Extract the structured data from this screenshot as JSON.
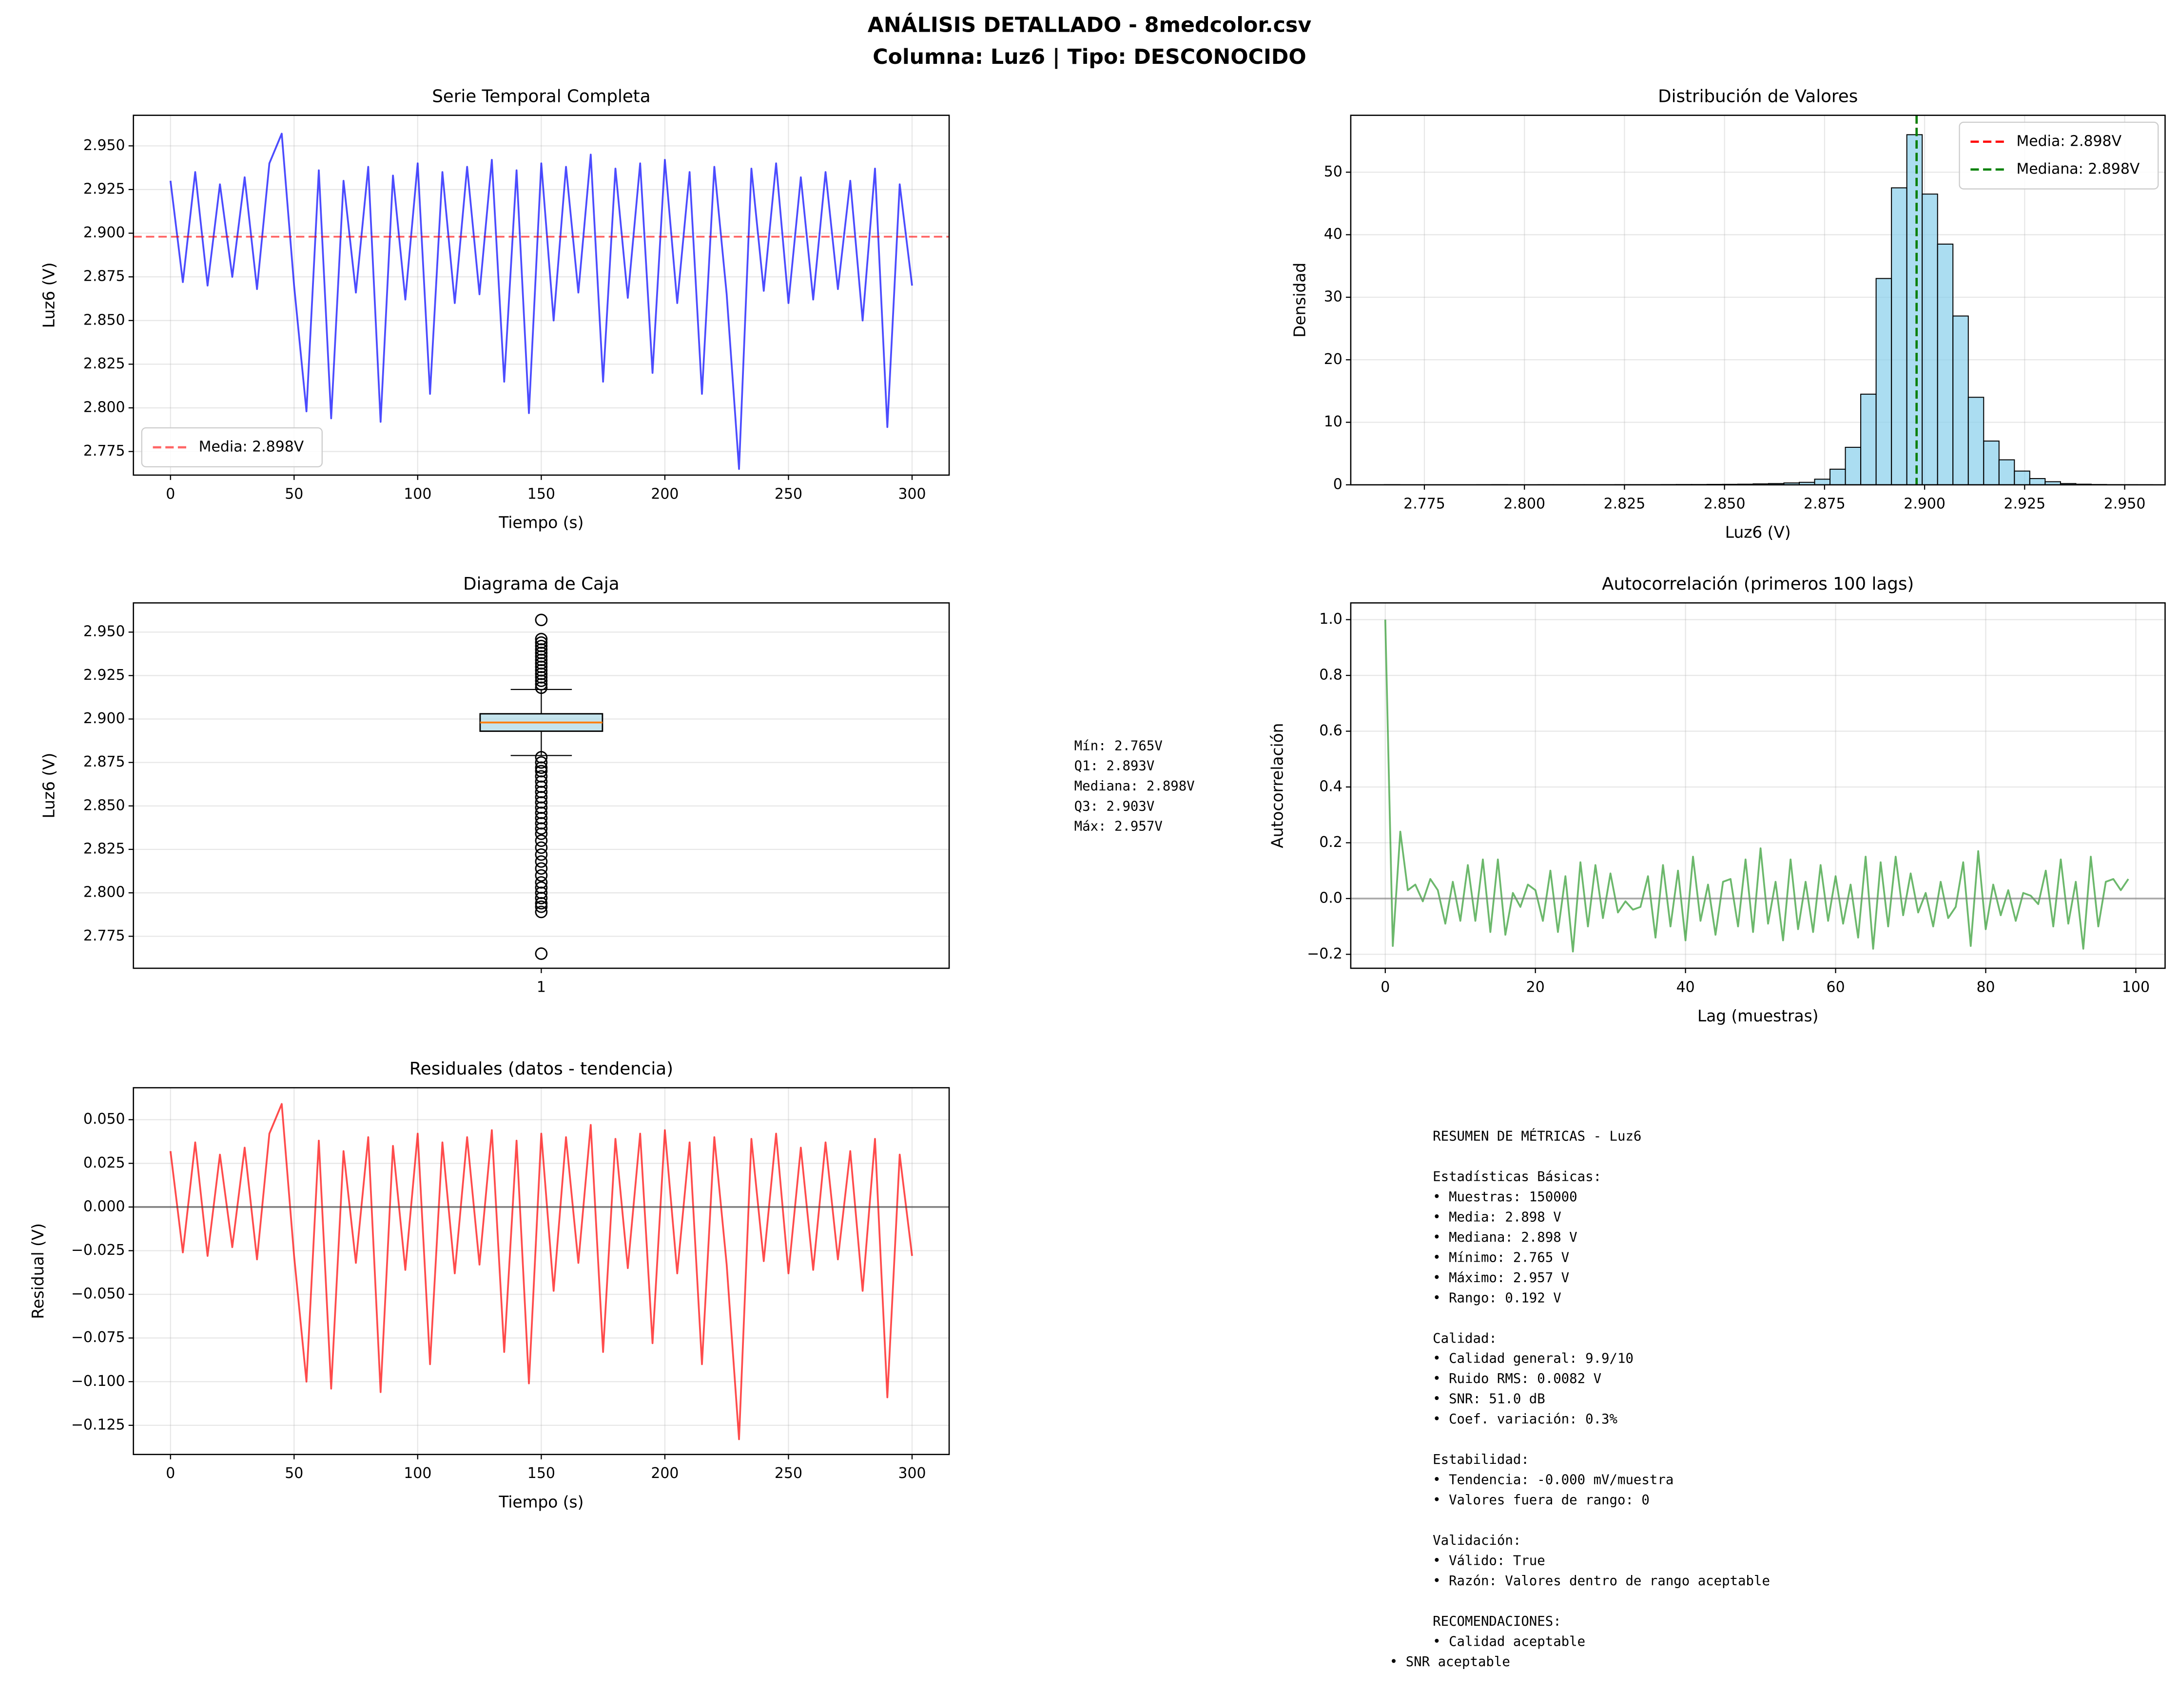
{
  "title": "ANÁLISIS DETALLADO - 8medcolor.csv",
  "subtitle": "Columna: Luz6 | Tipo: DESCONOCIDO",
  "chart_data": [
    {
      "type": "line",
      "title": "Serie Temporal Completa",
      "xlabel": "Tiempo (s)",
      "ylabel": "Luz6 (V)",
      "x": [
        0,
        5,
        10,
        15,
        20,
        25,
        30,
        35,
        40,
        45,
        50,
        55,
        60,
        65,
        70,
        75,
        80,
        85,
        90,
        95,
        100,
        105,
        110,
        115,
        120,
        125,
        130,
        135,
        140,
        145,
        150,
        155,
        160,
        165,
        170,
        175,
        180,
        185,
        190,
        195,
        200,
        205,
        210,
        215,
        220,
        225,
        230,
        235,
        240,
        245,
        250,
        255,
        260,
        265,
        270,
        275,
        280,
        285,
        290,
        295,
        300
      ],
      "series": [
        {
          "color": "#0000ff",
          "values": [
            2.93,
            2.872,
            2.935,
            2.87,
            2.928,
            2.875,
            2.932,
            2.868,
            2.94,
            2.957,
            2.87,
            2.798,
            2.936,
            2.794,
            2.93,
            2.866,
            2.938,
            2.792,
            2.933,
            2.862,
            2.94,
            2.808,
            2.935,
            2.86,
            2.938,
            2.865,
            2.942,
            2.815,
            2.936,
            2.797,
            2.94,
            2.85,
            2.938,
            2.866,
            2.945,
            2.815,
            2.937,
            2.863,
            2.94,
            2.82,
            2.942,
            2.86,
            2.935,
            2.808,
            2.938,
            2.865,
            2.765,
            2.937,
            2.867,
            2.94,
            2.86,
            2.932,
            2.862,
            2.935,
            2.868,
            2.93,
            2.85,
            2.937,
            2.789,
            2.928,
            2.87
          ]
        }
      ],
      "hlines": [
        {
          "value": 2.898,
          "label": "Media: 2.898V",
          "color": "#ff0000",
          "style": "dashed"
        }
      ],
      "legend": "lower left",
      "xlim": [
        -15,
        315
      ],
      "xticks": [
        0,
        50,
        100,
        150,
        200,
        250,
        300
      ],
      "ylim": [
        2.7615,
        2.9675
      ],
      "yticks": [
        2.775,
        {
          "value": 2.8,
          "label": "2.800"
        },
        2.825,
        {
          "value": 2.85,
          "label": "2.850"
        },
        2.875,
        {
          "value": 2.9,
          "label": "2.900"
        },
        2.925,
        {
          "value": 2.95,
          "label": "2.950"
        }
      ],
      "grid": true
    },
    {
      "type": "histogram",
      "title": "Distribución de Valores",
      "xlabel": "Luz6 (V)",
      "ylabel": "Densidad",
      "bins": [
        2.765,
        2.76884,
        2.77268,
        2.77652,
        2.78036,
        2.7842,
        2.78804,
        2.79188,
        2.79572,
        2.79956,
        2.8034,
        2.80724,
        2.81108,
        2.81492,
        2.81876,
        2.8226,
        2.82644,
        2.83028,
        2.83412,
        2.83796,
        2.8418,
        2.84564,
        2.84948,
        2.85332,
        2.85716,
        2.861,
        2.86484,
        2.86868,
        2.87252,
        2.87636,
        2.8802,
        2.88404,
        2.88788,
        2.89172,
        2.89556,
        2.8994,
        2.90324,
        2.90708,
        2.91092,
        2.91476,
        2.9186,
        2.92244,
        2.92628,
        2.93012,
        2.93396,
        2.9378,
        2.94164,
        2.94548,
        2.94932,
        2.95316,
        2.957
      ],
      "values": [
        0.03,
        0,
        0,
        0,
        0,
        0,
        0.01,
        0.03,
        0.01,
        0,
        0.01,
        0.01,
        0.01,
        0.01,
        0.01,
        0.03,
        0.03,
        0.03,
        0.04,
        0.05,
        0.05,
        0.07,
        0.08,
        0.1,
        0.15,
        0.2,
        0.3,
        0.4,
        0.9,
        2.5,
        6,
        14.5,
        33,
        47.5,
        56,
        46.5,
        38.5,
        27,
        14,
        7,
        4,
        2.2,
        1,
        0.5,
        0.2,
        0.1,
        0.05,
        0.03,
        0.02,
        0.01
      ],
      "color": "#87ceeb",
      "vlines": [
        {
          "value": 2.898,
          "label": "Media: 2.898V",
          "color": "#ff0000",
          "style": "dashed"
        },
        {
          "value": 2.898,
          "label": "Mediana: 2.898V",
          "color": "#008000",
          "style": "dashed"
        }
      ],
      "legend": "upper right",
      "xlim": [
        2.7566,
        2.9601
      ],
      "xticks": [
        2.775,
        {
          "value": 2.8,
          "label": "2.800"
        },
        2.825,
        {
          "value": 2.85,
          "label": "2.850"
        },
        2.875,
        {
          "value": 2.9,
          "label": "2.900"
        },
        2.925,
        {
          "value": 2.95,
          "label": "2.950"
        }
      ],
      "ylim": [
        0,
        59.1
      ],
      "yticks": [
        0,
        10,
        20,
        30,
        40,
        50
      ],
      "grid": true
    },
    {
      "type": "box",
      "title": "Diagrama de Caja",
      "ylabel": "Luz6 (V)",
      "categories": [
        "1"
      ],
      "box": {
        "q1": 2.893,
        "median": 2.898,
        "q3": 2.903,
        "whisker_low": 2.879,
        "whisker_high": 2.917,
        "outliers": [
          2.918,
          2.92,
          2.922,
          2.924,
          2.926,
          2.928,
          2.93,
          2.932,
          2.934,
          2.936,
          2.938,
          2.94,
          2.942,
          2.944,
          2.946,
          2.957,
          2.878,
          2.875,
          2.872,
          2.87,
          2.867,
          2.864,
          2.861,
          2.858,
          2.855,
          2.852,
          2.849,
          2.846,
          2.843,
          2.84,
          2.837,
          2.834,
          2.83,
          2.826,
          2.822,
          2.818,
          2.814,
          2.81,
          2.806,
          2.803,
          2.8,
          2.797,
          2.794,
          2.792,
          2.789,
          2.765
        ]
      },
      "color": "#add8e6",
      "median_color": "#ff7f0e",
      "stats_text": [
        "Mín: 2.765V",
        "Q1: 2.893V",
        "Mediana: 2.898V",
        "Q3: 2.903V",
        "Máx: 2.957V"
      ],
      "ylim": [
        2.7566,
        2.9668
      ],
      "yticks": [
        2.775,
        {
          "value": 2.8,
          "label": "2.800"
        },
        2.825,
        {
          "value": 2.85,
          "label": "2.850"
        },
        2.875,
        {
          "value": 2.9,
          "label": "2.900"
        },
        2.925,
        {
          "value": 2.95,
          "label": "2.950"
        }
      ],
      "grid": true
    },
    {
      "type": "line",
      "title": "Autocorrelación (primeros 100 lags)",
      "xlabel": "Lag (muestras)",
      "ylabel": "Autocorrelación",
      "x": [
        0,
        1,
        2,
        3,
        4,
        5,
        6,
        7,
        8,
        9,
        10,
        11,
        12,
        13,
        14,
        15,
        16,
        17,
        18,
        19,
        20,
        21,
        22,
        23,
        24,
        25,
        26,
        27,
        28,
        29,
        30,
        31,
        32,
        33,
        34,
        35,
        36,
        37,
        38,
        39,
        40,
        41,
        42,
        43,
        44,
        45,
        46,
        47,
        48,
        49,
        50,
        51,
        52,
        53,
        54,
        55,
        56,
        57,
        58,
        59,
        60,
        61,
        62,
        63,
        64,
        65,
        66,
        67,
        68,
        69,
        70,
        71,
        72,
        73,
        74,
        75,
        76,
        77,
        78,
        79,
        80,
        81,
        82,
        83,
        84,
        85,
        86,
        87,
        88,
        89,
        90,
        91,
        92,
        93,
        94,
        95,
        96,
        97,
        98,
        99
      ],
      "series": [
        {
          "color": "#2e9a2e",
          "values": [
            1.0,
            -0.17,
            0.24,
            0.03,
            0.05,
            -0.01,
            0.07,
            0.03,
            -0.09,
            0.06,
            -0.08,
            0.12,
            -0.08,
            0.14,
            -0.12,
            0.14,
            -0.13,
            0.02,
            -0.03,
            0.05,
            0.03,
            -0.08,
            0.1,
            -0.12,
            0.08,
            -0.19,
            0.13,
            -0.1,
            0.12,
            -0.07,
            0.09,
            -0.05,
            -0.01,
            -0.04,
            -0.03,
            0.08,
            -0.14,
            0.12,
            -0.1,
            0.1,
            -0.15,
            0.15,
            -0.08,
            0.05,
            -0.13,
            0.06,
            0.07,
            -0.1,
            0.14,
            -0.12,
            0.18,
            -0.09,
            0.06,
            -0.15,
            0.14,
            -0.11,
            0.06,
            -0.12,
            0.12,
            -0.08,
            0.08,
            -0.09,
            0.05,
            -0.14,
            0.15,
            -0.18,
            0.13,
            -0.1,
            0.15,
            -0.06,
            0.09,
            -0.05,
            0.02,
            -0.1,
            0.06,
            -0.07,
            -0.03,
            0.13,
            -0.17,
            0.17,
            -0.11,
            0.05,
            -0.06,
            0.03,
            -0.08,
            0.02,
            0.01,
            -0.02,
            0.1,
            -0.1,
            0.14,
            -0.09,
            0.06,
            -0.18,
            0.15,
            -0.1,
            0.06,
            0.07,
            0.03,
            0.07
          ]
        }
      ],
      "hlines": [
        {
          "value": 0,
          "color": "#808080",
          "style": "solid"
        }
      ],
      "xlim": [
        -4.6,
        103.9
      ],
      "xticks": [
        0,
        20,
        40,
        60,
        80,
        100
      ],
      "ylim": [
        -0.25,
        1.06
      ],
      "yticks": [
        {
          "value": -0.2,
          "label": "−0.2"
        },
        {
          "value": 0,
          "label": "0.0"
        },
        0.2,
        0.4,
        0.6,
        0.8,
        {
          "value": 1,
          "label": "1.0"
        }
      ],
      "grid": true
    },
    {
      "type": "line",
      "title": "Residuales (datos - tendencia)",
      "xlabel": "Tiempo (s)",
      "ylabel": "Residual (V)",
      "x": [
        0,
        5,
        10,
        15,
        20,
        25,
        30,
        35,
        40,
        45,
        50,
        55,
        60,
        65,
        70,
        75,
        80,
        85,
        90,
        95,
        100,
        105,
        110,
        115,
        120,
        125,
        130,
        135,
        140,
        145,
        150,
        155,
        160,
        165,
        170,
        175,
        180,
        185,
        190,
        195,
        200,
        205,
        210,
        215,
        220,
        225,
        230,
        235,
        240,
        245,
        250,
        255,
        260,
        265,
        270,
        275,
        280,
        285,
        290,
        295,
        300
      ],
      "series": [
        {
          "color": "#ff0000",
          "values": [
            0.032,
            -0.026,
            0.037,
            -0.028,
            0.03,
            -0.023,
            0.034,
            -0.03,
            0.042,
            0.059,
            -0.028,
            -0.1,
            0.038,
            -0.104,
            0.032,
            -0.032,
            0.04,
            -0.106,
            0.035,
            -0.036,
            0.042,
            -0.09,
            0.037,
            -0.038,
            0.04,
            -0.033,
            0.044,
            -0.083,
            0.038,
            -0.101,
            0.042,
            -0.048,
            0.04,
            -0.032,
            0.047,
            -0.083,
            0.039,
            -0.035,
            0.042,
            -0.078,
            0.044,
            -0.038,
            0.037,
            -0.09,
            0.04,
            -0.033,
            -0.133,
            0.039,
            -0.031,
            0.042,
            -0.038,
            0.034,
            -0.036,
            0.037,
            -0.03,
            0.032,
            -0.048,
            0.039,
            -0.109,
            0.03,
            -0.028
          ]
        }
      ],
      "hlines": [
        {
          "value": 0,
          "color": "#404040",
          "style": "solid"
        }
      ],
      "xlim": [
        -15,
        315
      ],
      "xticks": [
        0,
        50,
        100,
        150,
        200,
        250,
        300
      ],
      "ylim": [
        -0.1417,
        0.0683
      ],
      "yticks": [
        {
          "value": -0.125,
          "label": "−0.125"
        },
        {
          "value": -0.1,
          "label": "−0.100"
        },
        {
          "value": -0.075,
          "label": "−0.075"
        },
        {
          "value": -0.05,
          "label": "−0.050"
        },
        {
          "value": -0.025,
          "label": "−0.025"
        },
        {
          "value": 0,
          "label": "0.000"
        },
        0.025,
        {
          "value": 0.05,
          "label": "0.050"
        }
      ],
      "grid": true
    }
  ],
  "metrics": {
    "title": "RESUMEN DE MÉTRICAS - Luz6",
    "sections": [
      {
        "heading": "Estadísticas Básicas:",
        "items": [
          "• Muestras: 150000",
          "• Media: 2.898 V",
          "• Mediana: 2.898 V",
          "• Mínimo: 2.765 V",
          "• Máximo: 2.957 V",
          "• Rango: 0.192 V"
        ]
      },
      {
        "heading": "Calidad:",
        "items": [
          "• Calidad general: 9.9/10",
          "• Ruido RMS: 0.0082 V",
          "• SNR: 51.0 dB",
          "• Coef. variación: 0.3%"
        ]
      },
      {
        "heading": "Estabilidad:",
        "items": [
          "• Tendencia: -0.000 mV/muestra",
          "• Valores fuera de rango: 0"
        ]
      },
      {
        "heading": "Validación:",
        "items": [
          "• Válido: True",
          "• Razón: Valores dentro de rango aceptable"
        ]
      },
      {
        "heading": "RECOMENDACIONES:",
        "items": [
          "• Calidad aceptable",
          "• SNR aceptable"
        ]
      }
    ]
  }
}
